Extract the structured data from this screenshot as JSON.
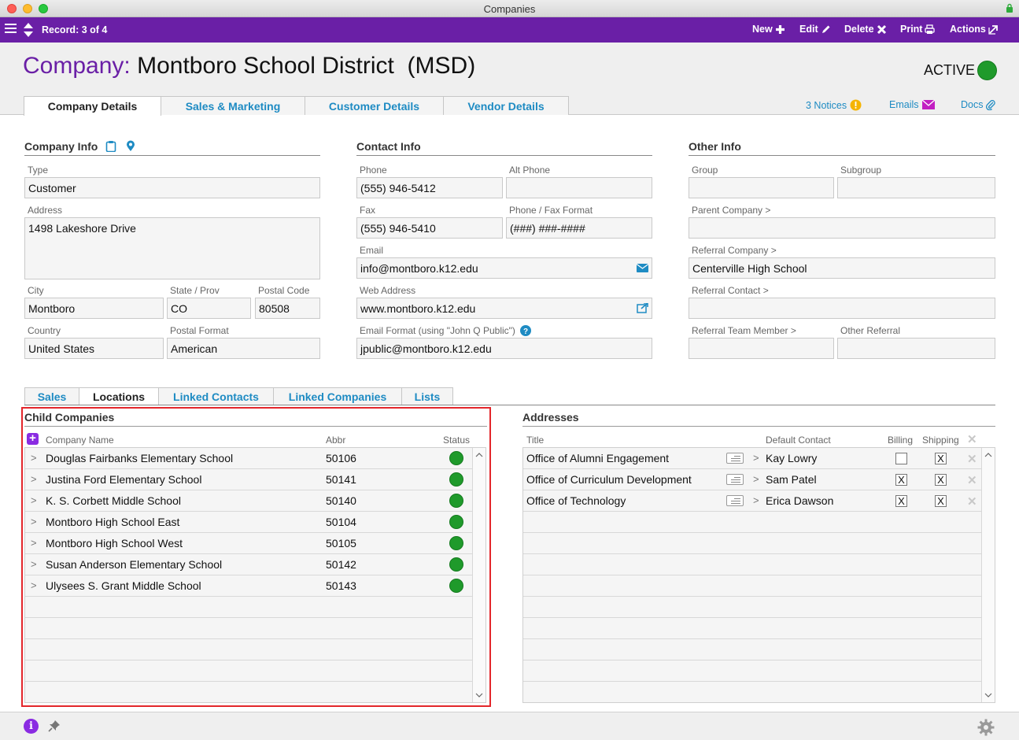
{
  "window": {
    "title": "Companies"
  },
  "toolbar": {
    "record": "Record: 3 of 4",
    "new_label": "New",
    "edit_label": "Edit",
    "delete_label": "Delete",
    "print_label": "Print",
    "actions_label": "Actions"
  },
  "header": {
    "title_label": "Company:",
    "title_name": "Montboro School District  (MSD)",
    "status": "ACTIVE",
    "status_color": "#1f9a2b",
    "tabs": [
      "Company Details",
      "Sales & Marketing",
      "Customer Details",
      "Vendor Details"
    ],
    "notices": "3 Notices",
    "emails": "Emails",
    "docs": "Docs"
  },
  "company_info": {
    "title": "Company Info",
    "type_label": "Type",
    "type": "Customer",
    "address_label": "Address",
    "address": "1498 Lakeshore Drive",
    "city_label": "City",
    "city": "Montboro",
    "state_label": "State / Prov",
    "state": "CO",
    "postal_label": "Postal Code",
    "postal": "80508",
    "country_label": "Country",
    "country": "United States",
    "postal_format_label": "Postal Format",
    "postal_format": "American"
  },
  "contact_info": {
    "title": "Contact Info",
    "phone_label": "Phone",
    "phone": "(555) 946-5412",
    "alt_phone_label": "Alt Phone",
    "alt_phone": "",
    "fax_label": "Fax",
    "fax": "(555) 946-5410",
    "phone_format_label": "Phone / Fax Format",
    "phone_format": "(###) ###-####",
    "email_label": "Email",
    "email": "info@montboro.k12.edu",
    "web_label": "Web Address",
    "web": "www.montboro.k12.edu",
    "email_format_label": "Email Format (using \"John Q Public\")",
    "email_format": "jpublic@montboro.k12.edu"
  },
  "other_info": {
    "title": "Other Info",
    "group_label": "Group",
    "group": "",
    "subgroup_label": "Subgroup",
    "subgroup": "",
    "parent_label": "Parent Company >",
    "parent": "",
    "referral_company_label": "Referral Company >",
    "referral_company": "Centerville High School",
    "referral_contact_label": "Referral Contact >",
    "referral_contact": "",
    "referral_team_label": "Referral Team Member >",
    "referral_team": "",
    "other_referral_label": "Other Referral",
    "other_referral": ""
  },
  "sub_tabs": [
    "Sales",
    "Locations",
    "Linked Contacts",
    "Linked Companies",
    "Lists"
  ],
  "child_companies": {
    "title": "Child Companies",
    "columns": [
      "Company Name",
      "Abbr",
      "Status"
    ],
    "rows": [
      {
        "name": "Douglas Fairbanks Elementary School",
        "abbr": "50106"
      },
      {
        "name": "Justina Ford Elementary School",
        "abbr": "50141"
      },
      {
        "name": "K. S. Corbett Middle School",
        "abbr": "50140"
      },
      {
        "name": "Montboro High School East",
        "abbr": "50104"
      },
      {
        "name": "Montboro High School West",
        "abbr": "50105"
      },
      {
        "name": "Susan Anderson Elementary School",
        "abbr": "50142"
      },
      {
        "name": "Ulysees S. Grant Middle School",
        "abbr": "50143"
      }
    ]
  },
  "addresses": {
    "title": "Addresses",
    "columns": [
      "Title",
      "Default Contact",
      "Billing",
      "Shipping"
    ],
    "rows": [
      {
        "title": "Office of Alumni Engagement",
        "contact": "Kay Lowry",
        "billing": "",
        "shipping": "X"
      },
      {
        "title": "Office of Curriculum Development",
        "contact": "Sam Patel",
        "billing": "X",
        "shipping": "X"
      },
      {
        "title": "Office of Technology",
        "contact": "Erica Dawson",
        "billing": "X",
        "shipping": "X"
      }
    ]
  }
}
